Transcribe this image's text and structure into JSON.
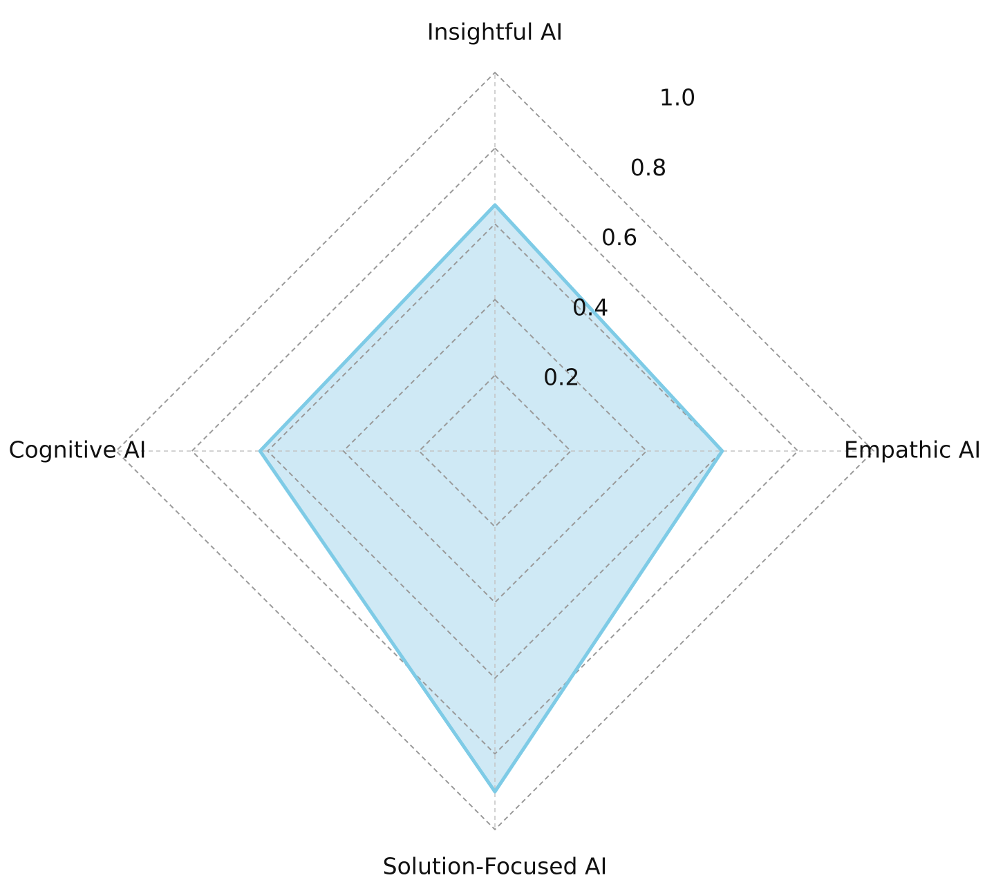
{
  "chart_data": {
    "type": "radar",
    "categories": [
      "Insightful AI",
      "Empathic AI",
      "Solution-Focused AI",
      "Cognitive AI"
    ],
    "series": [
      {
        "values": [
          0.65,
          0.6,
          0.9,
          0.62
        ]
      }
    ],
    "rlim": [
      0,
      1.0
    ],
    "rticks": [
      0.2,
      0.4,
      0.6,
      0.8,
      1.0
    ],
    "rtick_labels": [
      "0.2",
      "0.4",
      "0.6",
      "0.8",
      "1.0"
    ],
    "grid": true,
    "colors": {
      "line": "#7ecbe6",
      "fill": "#cfe9f5",
      "grid": "#9a9a9a"
    }
  }
}
